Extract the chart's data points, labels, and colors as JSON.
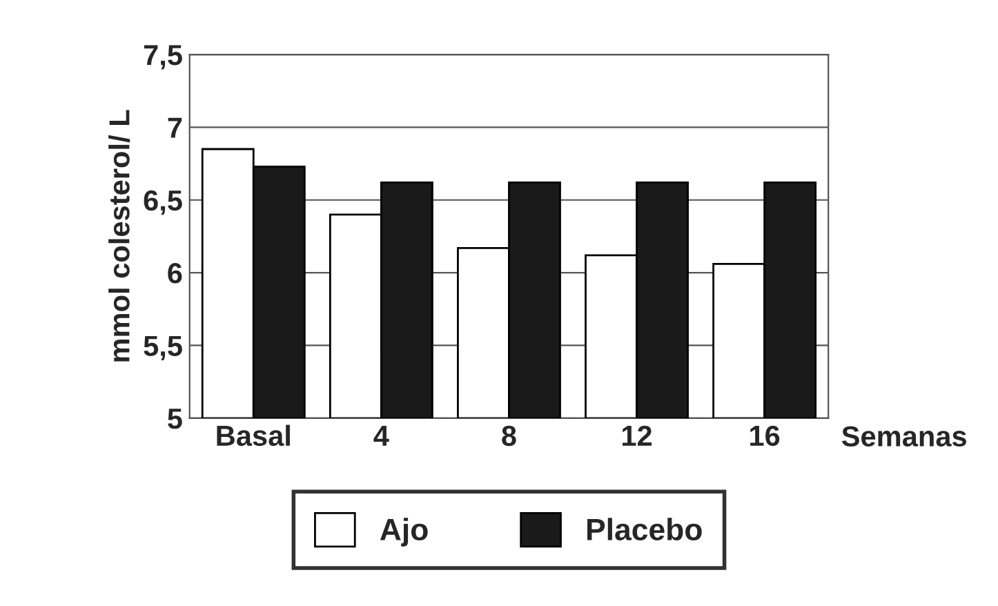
{
  "chart_data": {
    "type": "bar",
    "ylabel": "mmol colesterol/ L",
    "xlabel": "Semanas",
    "categories": [
      "Basal",
      "4",
      "8",
      "12",
      "16"
    ],
    "series": [
      {
        "name": "Ajo",
        "color": "#ffffff",
        "values": [
          6.85,
          6.4,
          6.17,
          6.12,
          6.06
        ]
      },
      {
        "name": "Placebo",
        "color": "#1a1a1a",
        "values": [
          6.73,
          6.62,
          6.62,
          6.62,
          6.62
        ]
      }
    ],
    "ylim": [
      5,
      7.5
    ],
    "yticks": [
      5,
      {
        "value": 5.5,
        "label": "5,5"
      },
      {
        "value": 6,
        "label": "6"
      },
      {
        "value": 6.5,
        "label": "6,5"
      },
      {
        "value": 7,
        "label": "7"
      },
      {
        "value": 7.5,
        "label": "7,5"
      }
    ],
    "grid": "y",
    "legend": "bottom"
  }
}
